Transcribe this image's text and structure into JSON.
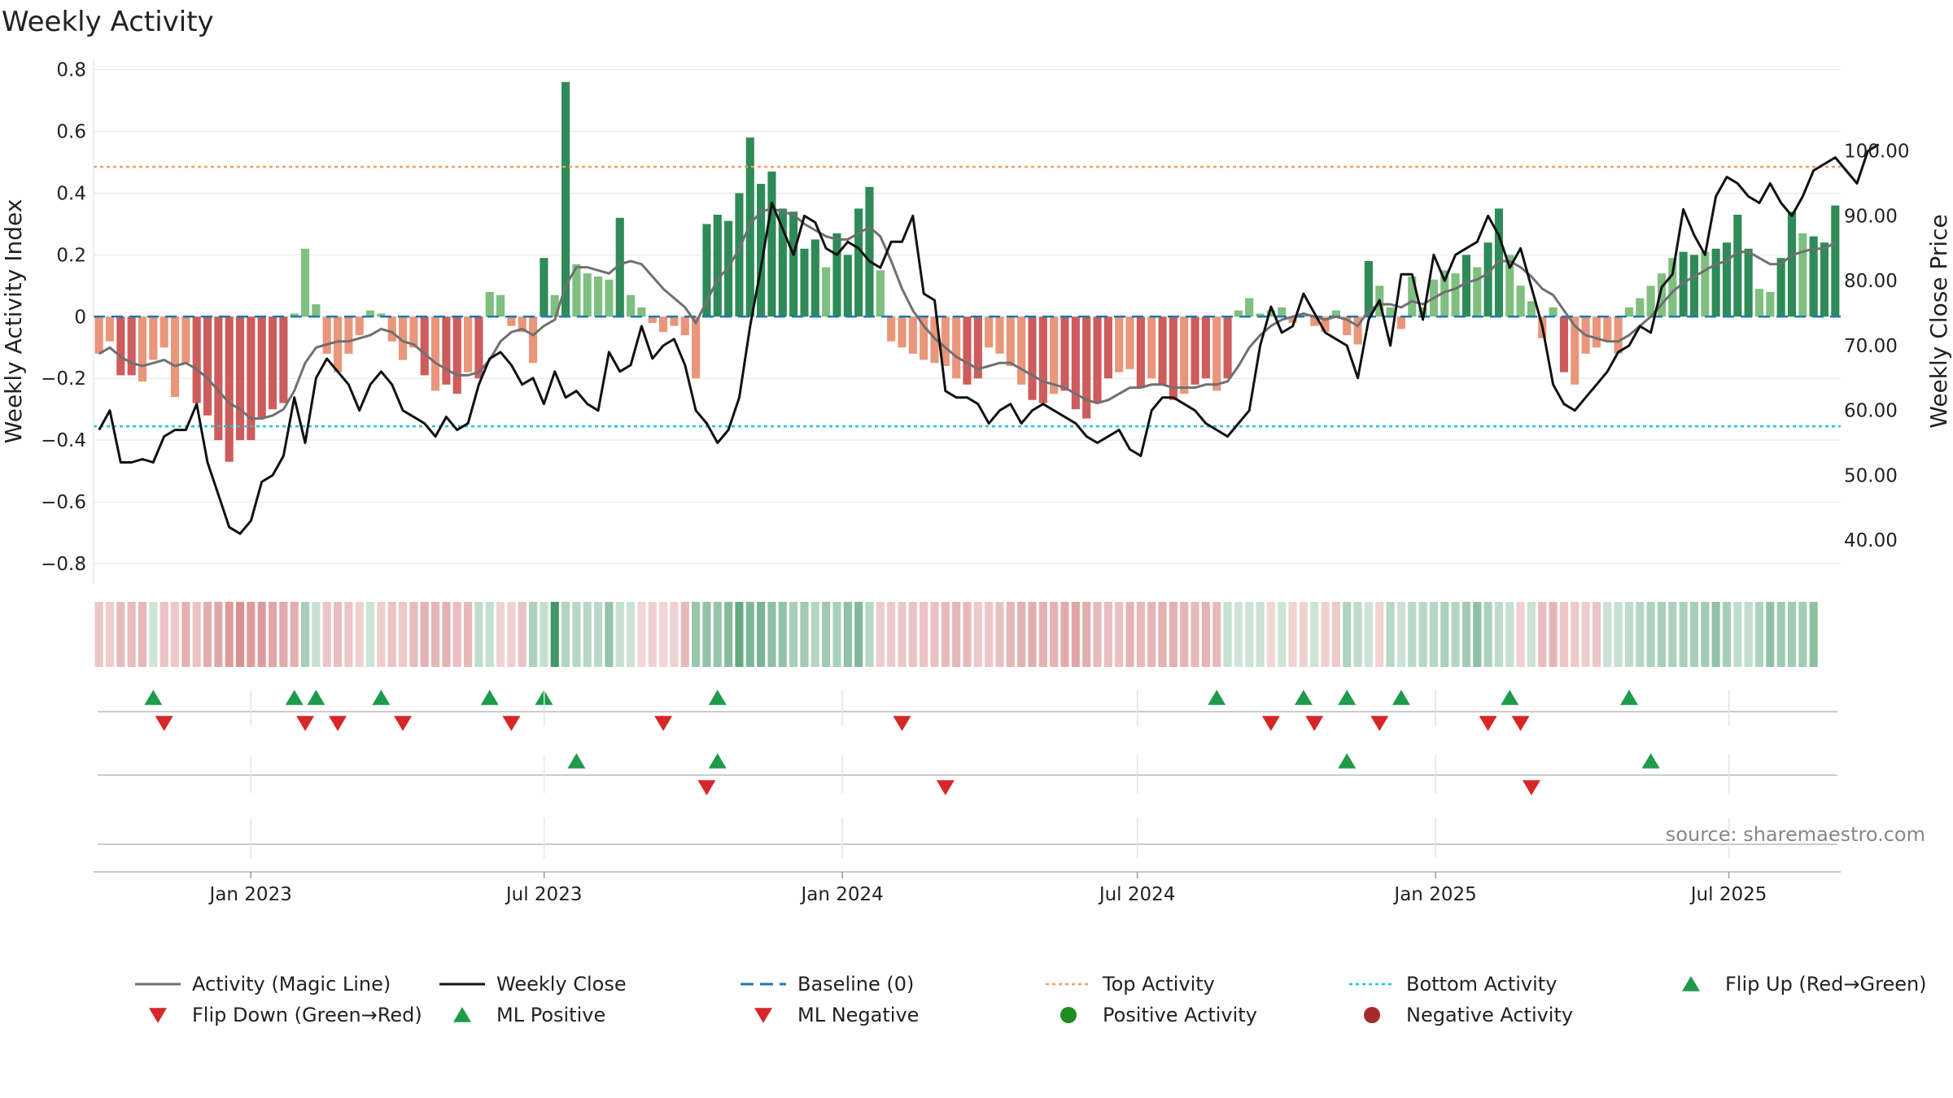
{
  "chart_data": {
    "type": "bar",
    "title": "Weekly Activity",
    "ylabel": "Weekly Activity Index",
    "y2label": "Weekly Close Price",
    "ylim": [
      -0.85,
      0.82
    ],
    "y2lim": [
      34,
      113.5
    ],
    "yticks": [
      "0.8",
      "0.6",
      "0.4",
      "0.2",
      "0",
      "−0.2",
      "−0.4",
      "−0.6",
      "−0.8"
    ],
    "yticks_values": [
      0.8,
      0.6,
      0.4,
      0.2,
      0,
      -0.2,
      -0.4,
      -0.6,
      -0.8
    ],
    "y2ticks": [
      "100.00",
      "90.00",
      "80.00",
      "70.00",
      "60.00",
      "50.00",
      "40.00"
    ],
    "y2ticks_values": [
      100,
      90,
      80,
      70,
      60,
      50,
      40
    ],
    "x_start": "2022-09-26",
    "x_end": "2025-09-08",
    "xticks": [
      {
        "label": "Jan 2023",
        "date": "2023-01-01"
      },
      {
        "label": "Jul 2023",
        "date": "2023-07-01"
      },
      {
        "label": "Jan 2024",
        "date": "2024-01-01"
      },
      {
        "label": "Jul 2024",
        "date": "2024-07-01"
      },
      {
        "label": "Jan 2025",
        "date": "2025-01-01"
      },
      {
        "label": "Jul 2025",
        "date": "2025-07-01"
      }
    ],
    "top_activity": 0.485,
    "bottom_activity": -0.355,
    "baseline": 0,
    "activity_index": [
      -0.12,
      -0.08,
      -0.19,
      -0.19,
      -0.21,
      -0.14,
      -0.1,
      -0.26,
      -0.15,
      -0.28,
      -0.32,
      -0.4,
      -0.47,
      -0.4,
      -0.4,
      -0.33,
      -0.3,
      -0.28,
      0.01,
      0.22,
      0.04,
      -0.12,
      -0.18,
      -0.12,
      -0.06,
      0.02,
      0.01,
      -0.08,
      -0.14,
      -0.1,
      -0.19,
      -0.24,
      -0.22,
      -0.25,
      -0.18,
      -0.2,
      0.08,
      0.07,
      -0.03,
      -0.05,
      -0.15,
      0.19,
      0.07,
      0.76,
      0.17,
      0.14,
      0.13,
      0.12,
      0.32,
      0.07,
      0.03,
      -0.02,
      -0.05,
      -0.03,
      -0.06,
      -0.2,
      0.3,
      0.33,
      0.31,
      0.4,
      0.58,
      0.43,
      0.47,
      0.35,
      0.34,
      0.22,
      0.25,
      0.16,
      0.27,
      0.2,
      0.35,
      0.42,
      0.15,
      -0.08,
      -0.1,
      -0.12,
      -0.14,
      -0.15,
      -0.16,
      -0.2,
      -0.22,
      -0.2,
      -0.1,
      -0.12,
      -0.16,
      -0.22,
      -0.27,
      -0.28,
      -0.25,
      -0.24,
      -0.3,
      -0.33,
      -0.28,
      -0.2,
      -0.18,
      -0.17,
      -0.23,
      -0.2,
      -0.22,
      -0.27,
      -0.25,
      -0.22,
      -0.2,
      -0.24,
      -0.2,
      0.02,
      0.06,
      0.01,
      0.02,
      0.03,
      -0.02,
      0.01,
      -0.03,
      -0.05,
      0.02,
      -0.06,
      -0.09,
      0.18,
      0.1,
      0.03,
      -0.04,
      0.13,
      0.03,
      0.12,
      0.15,
      0.14,
      0.2,
      0.16,
      0.24,
      0.35,
      0.2,
      0.1,
      0.05,
      -0.07,
      0.03,
      -0.18,
      -0.22,
      -0.12,
      -0.1,
      -0.08,
      -0.12,
      0.03,
      0.06,
      0.1,
      0.14,
      0.19,
      0.21,
      0.2,
      0.21,
      0.22,
      0.24,
      0.33,
      0.22,
      0.09,
      0.08,
      0.19,
      0.34,
      0.27,
      0.26,
      0.24,
      0.36
    ],
    "magic_line": [
      -0.12,
      -0.1,
      -0.13,
      -0.15,
      -0.16,
      -0.15,
      -0.14,
      -0.16,
      -0.15,
      -0.17,
      -0.2,
      -0.24,
      -0.28,
      -0.3,
      -0.33,
      -0.33,
      -0.32,
      -0.3,
      -0.24,
      -0.15,
      -0.1,
      -0.09,
      -0.08,
      -0.08,
      -0.07,
      -0.06,
      -0.04,
      -0.05,
      -0.08,
      -0.09,
      -0.12,
      -0.15,
      -0.17,
      -0.19,
      -0.19,
      -0.18,
      -0.14,
      -0.08,
      -0.05,
      -0.04,
      -0.06,
      -0.03,
      -0.01,
      0.1,
      0.16,
      0.16,
      0.15,
      0.14,
      0.17,
      0.18,
      0.17,
      0.13,
      0.09,
      0.06,
      0.03,
      -0.02,
      0.05,
      0.12,
      0.16,
      0.22,
      0.3,
      0.34,
      0.35,
      0.34,
      0.33,
      0.3,
      0.28,
      0.26,
      0.25,
      0.25,
      0.27,
      0.29,
      0.26,
      0.18,
      0.09,
      0.02,
      -0.03,
      -0.07,
      -0.1,
      -0.13,
      -0.15,
      -0.17,
      -0.16,
      -0.15,
      -0.15,
      -0.17,
      -0.19,
      -0.21,
      -0.22,
      -0.23,
      -0.25,
      -0.27,
      -0.28,
      -0.27,
      -0.25,
      -0.23,
      -0.23,
      -0.22,
      -0.22,
      -0.23,
      -0.23,
      -0.23,
      -0.22,
      -0.22,
      -0.21,
      -0.16,
      -0.1,
      -0.06,
      -0.03,
      -0.01,
      0,
      0.01,
      0,
      -0.01,
      0,
      -0.01,
      -0.03,
      0.02,
      0.04,
      0.04,
      0.03,
      0.05,
      0.04,
      0.06,
      0.08,
      0.09,
      0.11,
      0.12,
      0.14,
      0.18,
      0.18,
      0.16,
      0.13,
      0.09,
      0.07,
      0.02,
      -0.03,
      -0.06,
      -0.07,
      -0.08,
      -0.08,
      -0.06,
      -0.03,
      0,
      0.04,
      0.08,
      0.11,
      0.13,
      0.15,
      0.17,
      0.18,
      0.21,
      0.21,
      0.19,
      0.17,
      0.17,
      0.2,
      0.21,
      0.22,
      0.22,
      0.24
    ],
    "weekly_close": [
      57,
      60,
      52,
      52,
      52.5,
      52,
      56,
      57,
      57,
      61,
      52,
      47,
      42,
      41,
      43,
      49,
      50,
      53,
      62,
      55,
      65,
      68,
      66,
      64,
      60,
      64,
      66,
      64,
      60,
      59,
      58,
      56,
      59,
      57,
      58,
      64,
      68,
      69,
      67,
      64,
      65,
      61,
      66,
      62,
      63,
      61,
      60,
      69,
      66,
      67,
      73,
      68,
      70,
      71,
      67,
      60,
      58,
      55,
      57,
      62,
      73,
      82,
      92,
      88,
      84,
      90,
      89,
      85,
      84,
      86,
      85,
      83,
      82,
      86,
      86,
      90,
      78,
      77,
      63,
      62,
      62,
      61,
      58,
      60,
      61,
      58,
      60,
      61,
      60,
      59,
      58,
      56,
      55,
      56,
      57,
      54,
      53,
      60,
      62,
      62,
      61,
      60,
      58,
      57,
      56,
      58,
      60,
      70,
      76,
      72,
      73,
      78,
      75,
      72,
      71,
      70,
      65,
      74,
      77,
      70,
      81,
      81,
      74,
      84,
      80,
      84,
      85,
      86,
      90,
      87,
      82,
      85,
      79,
      73,
      64,
      61,
      60,
      62,
      64,
      66,
      69,
      70,
      73,
      72,
      79,
      81,
      91,
      87,
      84,
      93,
      96,
      95,
      93,
      92,
      95,
      92,
      90,
      93,
      97,
      98,
      99,
      97,
      95,
      100,
      101
    ],
    "heat_strip": [
      -0.12,
      -0.08,
      -0.19,
      -0.19,
      -0.21,
      0.01,
      -0.14,
      -0.1,
      -0.26,
      -0.15,
      -0.28,
      -0.32,
      -0.4,
      -0.47,
      -0.4,
      -0.4,
      -0.33,
      -0.3,
      -0.28,
      0.22,
      0.04,
      -0.12,
      -0.18,
      -0.12,
      -0.06,
      0.02,
      -0.08,
      -0.14,
      -0.1,
      -0.19,
      -0.24,
      -0.22,
      -0.25,
      -0.18,
      -0.2,
      0.08,
      0.07,
      -0.03,
      -0.05,
      -0.15,
      0.19,
      0.07,
      0.76,
      0.17,
      0.14,
      0.13,
      0.12,
      0.32,
      0.07,
      0.03,
      -0.02,
      -0.05,
      -0.03,
      -0.06,
      -0.2,
      0.3,
      0.33,
      0.31,
      0.4,
      0.58,
      0.43,
      0.47,
      0.35,
      0.34,
      0.22,
      0.25,
      0.16,
      0.27,
      0.2,
      0.35,
      0.42,
      0.15,
      -0.08,
      -0.1,
      -0.12,
      -0.14,
      -0.15,
      -0.16,
      -0.2,
      -0.22,
      -0.2,
      -0.1,
      -0.12,
      -0.16,
      -0.22,
      -0.27,
      -0.28,
      -0.25,
      -0.24,
      -0.3,
      -0.33,
      -0.28,
      -0.2,
      -0.18,
      -0.17,
      -0.23,
      -0.2,
      -0.22,
      -0.27,
      -0.25,
      -0.22,
      -0.2,
      -0.24,
      -0.2,
      0.06,
      0.01,
      0.02,
      0.03,
      -0.02,
      0.01,
      -0.03,
      -0.05,
      0.02,
      -0.06,
      -0.09,
      0.18,
      0.1,
      0.03,
      -0.04,
      0.13,
      0.03,
      0.12,
      0.15,
      0.14,
      0.2,
      0.16,
      0.24,
      0.35,
      0.2,
      0.1,
      0.05,
      -0.07,
      0.03,
      -0.18,
      -0.22,
      -0.12,
      -0.1,
      -0.08,
      -0.12,
      0.03,
      0.06,
      0.1,
      0.14,
      0.19,
      0.21,
      0.2,
      0.21,
      0.22,
      0.24,
      0.33,
      0.22,
      0.09,
      0.08,
      0.19,
      0.34,
      0.27,
      0.26,
      0.24,
      0.36
    ],
    "flip_up": [
      5,
      18,
      20,
      26,
      36,
      41,
      57,
      103,
      111,
      115,
      120,
      130,
      141
    ],
    "flip_down": [
      6,
      19,
      22,
      28,
      38,
      52,
      74,
      108,
      112,
      118,
      128,
      131
    ],
    "ml_positive": [
      44,
      57,
      115,
      143
    ],
    "ml_negative": [
      56,
      78,
      132
    ],
    "legend": [
      {
        "label": "Activity (Magic Line)",
        "marker": "line",
        "color": "#707070"
      },
      {
        "label": "Weekly Close",
        "marker": "line",
        "color": "#111111"
      },
      {
        "label": "Baseline (0)",
        "marker": "dash",
        "color": "#1f77b4"
      },
      {
        "label": "Top Activity",
        "marker": "dot-line",
        "color": "#f0a060"
      },
      {
        "label": "Bottom Activity",
        "marker": "dot-line",
        "color": "#22c4d8"
      },
      {
        "label": "Flip Up (Red→Green)",
        "marker": "tri-up",
        "color": "#1e9a4a"
      },
      {
        "label": "Flip Down (Green→Red)",
        "marker": "tri-down",
        "color": "#d62728"
      },
      {
        "label": "ML Positive",
        "marker": "tri-up",
        "color": "#1e9a4a"
      },
      {
        "label": "ML Negative",
        "marker": "tri-down",
        "color": "#d62728"
      },
      {
        "label": "Positive Activity",
        "marker": "circle",
        "color": "#228b22"
      },
      {
        "label": "Negative Activity",
        "marker": "circle",
        "color": "#a52a2a"
      }
    ],
    "source": "source: sharemaestro.com"
  },
  "colors": {
    "strong_green": "#2e8b57",
    "light_green": "#7fbf7f",
    "strong_red": "#cd5c5c",
    "light_red": "#e9967a",
    "magic_line": "#707070",
    "close_line": "#111111",
    "baseline": "#1f77b4",
    "top_line": "#f0a060",
    "bottom_line": "#22c4d8",
    "flip_up": "#1e9a4a",
    "flip_down": "#d62728",
    "grid": "#e6e6e6"
  }
}
